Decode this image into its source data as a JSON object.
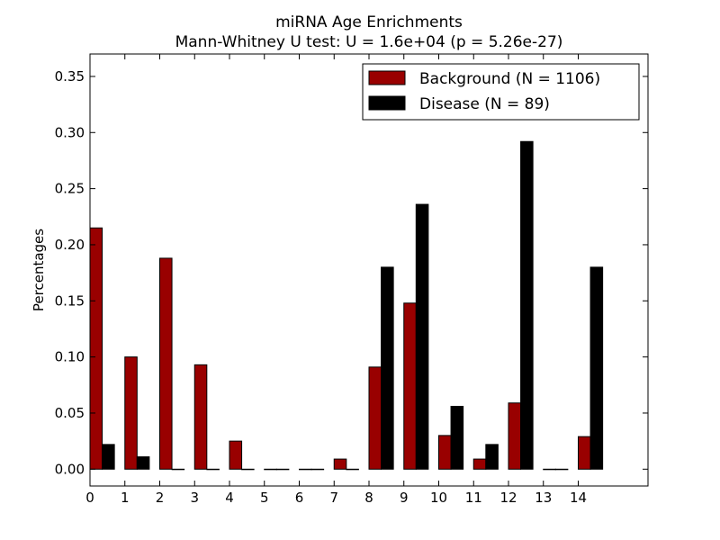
{
  "chart_data": {
    "type": "bar",
    "title": "miRNA Age Enrichments",
    "subtitle": "Mann-Whitney U test: U = 1.6e+04 (p = 5.26e-27)",
    "xlabel": "",
    "ylabel": "Percentages",
    "x_ticks": [
      "0",
      "1",
      "2",
      "3",
      "4",
      "5",
      "6",
      "7",
      "8",
      "9",
      "10",
      "11",
      "12",
      "13",
      "14"
    ],
    "y_ticks": [
      "0.00",
      "0.05",
      "0.10",
      "0.15",
      "0.20",
      "0.25",
      "0.30",
      "0.35"
    ],
    "xlim": [
      0,
      16
    ],
    "ylim": [
      -0.015,
      0.37
    ],
    "grid": false,
    "legend_position": "top-right",
    "categories": [
      0,
      1,
      2,
      3,
      4,
      5,
      6,
      7,
      8,
      9,
      10,
      11,
      12,
      13,
      14
    ],
    "series": [
      {
        "name": "Background (N = 1106)",
        "color": "#990000",
        "values": [
          0.215,
          0.1,
          0.188,
          0.093,
          0.025,
          0.0,
          0.0,
          0.009,
          0.091,
          0.148,
          0.03,
          0.009,
          0.059,
          0.0,
          0.029
        ]
      },
      {
        "name": "Disease (N = 89)",
        "color": "#000000",
        "values": [
          0.022,
          0.011,
          0.0,
          0.0,
          0.0,
          0.0,
          0.0,
          0.0,
          0.18,
          0.236,
          0.056,
          0.022,
          0.292,
          0.0,
          0.18
        ]
      }
    ]
  }
}
